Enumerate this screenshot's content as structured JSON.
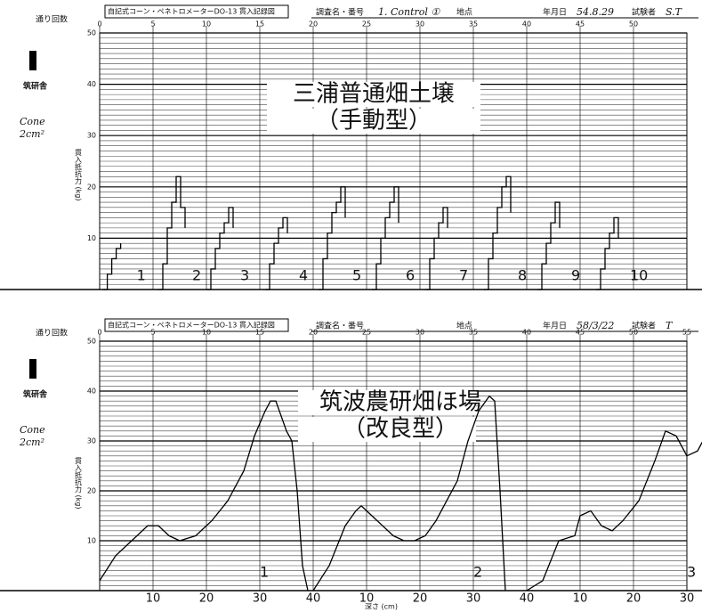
{
  "chart_data": [
    {
      "type": "line",
      "left_label": "通り回数",
      "header_title": "自記式コーン・ペネトロメーターDO-13 貫入記録図",
      "survey_label": "調査名・番号",
      "survey_value": "1. Control ①",
      "site_label": "地点",
      "date_label": "年月日",
      "date_value": "54.8.29",
      "tester_label": "試験者",
      "tester_value": "S.T",
      "logo": "筑研舎",
      "note": [
        "Cone",
        "2cm²"
      ],
      "y_label": "貫入抵抗力 (kg)",
      "title": [
        "三浦普通畑土壌",
        "（手動型）"
      ],
      "xlim": [
        0,
        55
      ],
      "xticks": [
        0,
        5,
        10,
        15,
        20,
        25,
        30,
        35,
        40,
        45,
        50
      ],
      "ylim": [
        0,
        50
      ],
      "yticks": [
        10,
        20,
        30,
        40,
        50
      ],
      "series": [
        {
          "name": "1",
          "values": [
            0,
            3,
            6,
            8,
            9
          ]
        },
        {
          "name": "2",
          "values": [
            0,
            5,
            12,
            17,
            22,
            16,
            12
          ]
        },
        {
          "name": "3",
          "values": [
            0,
            4,
            8,
            11,
            13,
            16,
            12
          ]
        },
        {
          "name": "4",
          "values": [
            0,
            5,
            9,
            12,
            14,
            11
          ]
        },
        {
          "name": "5",
          "values": [
            0,
            6,
            11,
            15,
            17,
            20,
            14
          ]
        },
        {
          "name": "6",
          "values": [
            0,
            5,
            10,
            14,
            17,
            20,
            13
          ]
        },
        {
          "name": "7",
          "values": [
            0,
            6,
            10,
            13,
            16,
            12
          ]
        },
        {
          "name": "8",
          "values": [
            0,
            6,
            11,
            16,
            20,
            22,
            15
          ]
        },
        {
          "name": "9",
          "values": [
            0,
            5,
            9,
            13,
            17,
            12
          ]
        },
        {
          "name": "10",
          "values": [
            0,
            4,
            8,
            11,
            14,
            10
          ]
        }
      ]
    },
    {
      "type": "line",
      "left_label": "通り回数",
      "header_title": "自記式コーン・ペネトロメーターDO-13 貫入記録図",
      "survey_label": "調査名・番号",
      "site_label": "地点",
      "date_label": "年月日",
      "date_value": "58/3/22",
      "tester_label": "試験者",
      "tester_value": "T",
      "logo": "筑研舎",
      "note": [
        "Cone",
        "2cm²"
      ],
      "y_label": "貫入抵抗力 (kg)",
      "title": [
        "筑波農研畑ほ場",
        "（改良型）"
      ],
      "xlim": [
        0,
        55
      ],
      "xticks": [
        0,
        5,
        10,
        15,
        20,
        25,
        30,
        35,
        40,
        45,
        50,
        55
      ],
      "ylim": [
        0,
        50
      ],
      "yticks": [
        10,
        20,
        30,
        40,
        50
      ],
      "depth_ticks": [
        10,
        20,
        30,
        40
      ],
      "depth_label": "深さ (cm)",
      "series": [
        {
          "name": "1",
          "x": [
            0,
            3,
            6,
            9,
            11,
            13,
            15,
            18,
            21,
            24,
            27,
            29,
            31,
            32,
            33,
            35,
            36,
            37,
            38,
            39
          ],
          "values": [
            2,
            7,
            10,
            13,
            13,
            11,
            10,
            11,
            14,
            18,
            24,
            31,
            36,
            38,
            38,
            32,
            30,
            20,
            5,
            0
          ]
        },
        {
          "name": "2",
          "x": [
            0,
            3,
            6,
            8,
            9,
            11,
            13,
            15,
            17,
            19,
            21,
            23,
            25,
            27,
            29,
            31,
            33,
            34,
            35,
            36
          ],
          "values": [
            0,
            5,
            13,
            16,
            17,
            15,
            13,
            11,
            10,
            10,
            11,
            14,
            18,
            22,
            30,
            36,
            39,
            38,
            20,
            0
          ]
        },
        {
          "name": "3",
          "x": [
            0,
            3,
            6,
            9,
            10,
            12,
            14,
            16,
            18,
            21,
            24,
            26,
            28,
            30,
            32,
            33
          ],
          "values": [
            0,
            2,
            10,
            11,
            15,
            16,
            13,
            12,
            14,
            18,
            26,
            32,
            31,
            27,
            28,
            30
          ]
        }
      ]
    }
  ]
}
